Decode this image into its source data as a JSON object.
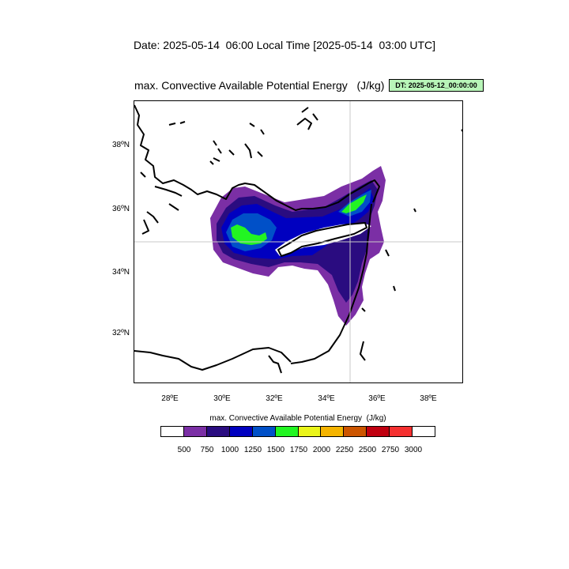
{
  "header": {
    "date_line": "Date: 2025-05-14  06:00 Local Time [2025-05-14  03:00 UTC]",
    "map_title": "max. Convective Available Potential Energy   (J/kg)",
    "dt_badge": "DT: 2025-05-12_00:00:00"
  },
  "map": {
    "lon_range": [
      26.5,
      39.3
    ],
    "lat_range": [
      30.5,
      39.4
    ],
    "lon_ticks": [
      "28ºE",
      "30ºE",
      "32ºE",
      "34ºE",
      "36ºE",
      "38ºE"
    ],
    "lat_ticks": [
      "38ºN",
      "36ºN",
      "34ºN",
      "32ºN"
    ],
    "grid_lines": {
      "lon": 35,
      "lat": 35
    },
    "cape_regions": [
      "Eastern Mediterranean band 500-1250 J/kg south of Turkey",
      "Peak 1500-1750 J/kg near 31E 35.2N",
      "Peak 1500-1750 J/kg near 35.5E 36N",
      "500-1000 J/kg along the Levant coast"
    ]
  },
  "colorbar": {
    "title": "max. Convective Available Potential Energy  (J/kg)",
    "colors": [
      "#ffffff",
      "#7b2fa5",
      "#2a0c80",
      "#0000c0",
      "#0050c8",
      "#22f522",
      "#eaf51a",
      "#f5b400",
      "#cc5500",
      "#c00010",
      "#f53030",
      "#ffffff"
    ],
    "labels": [
      "500",
      "750",
      "1000",
      "1250",
      "1500",
      "1750",
      "2000",
      "2250",
      "2500",
      "2750",
      "3000"
    ]
  }
}
